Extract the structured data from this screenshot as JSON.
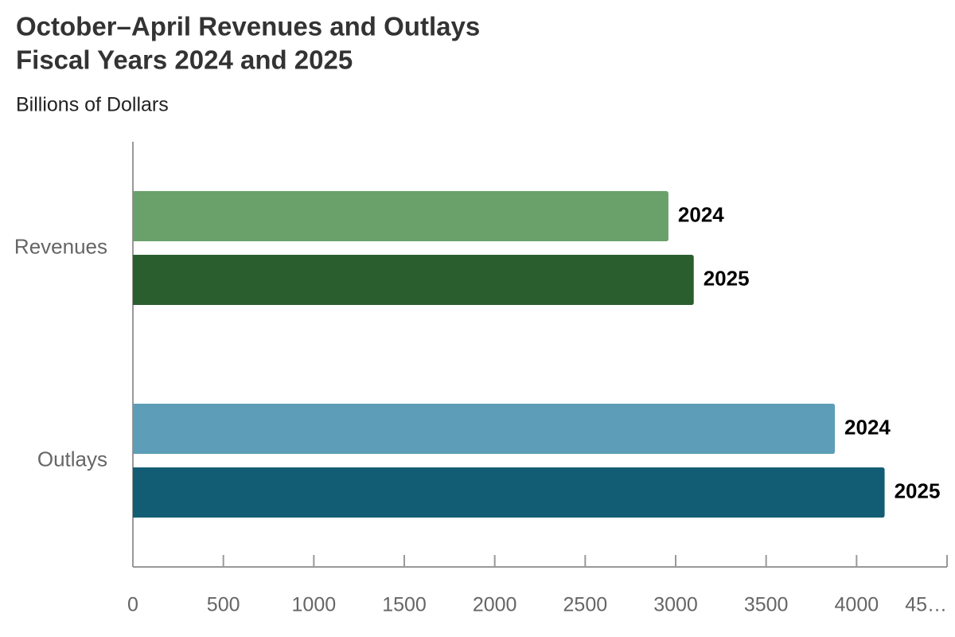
{
  "chart_data": {
    "type": "hbar",
    "title": [
      "October–April Revenues and Outlays",
      "Fiscal Years 2024 and 2025"
    ],
    "subtitle": "Billions of Dollars",
    "categories": [
      "Revenues",
      "Outlays"
    ],
    "series": [
      {
        "name": "2024",
        "colors": [
          "#6aa06a",
          "#5d9db7"
        ],
        "values": [
          2960,
          3880
        ]
      },
      {
        "name": "2025",
        "colors": [
          "#2b5e2e",
          "#125d73"
        ],
        "values": [
          3100,
          4155
        ]
      }
    ],
    "xlim": [
      0,
      4500
    ],
    "xticks": [
      0,
      500,
      1000,
      1500,
      2000,
      2500,
      3000,
      3500,
      4000,
      {
        "value": 4500,
        "label": "45…"
      }
    ]
  }
}
